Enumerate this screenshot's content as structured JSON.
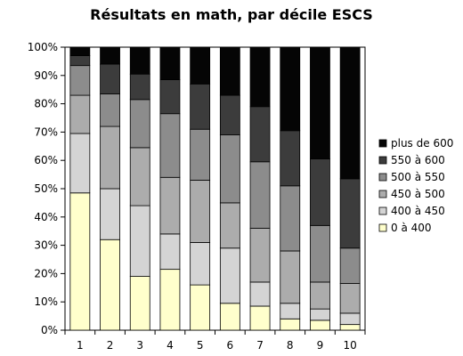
{
  "chart_data": {
    "type": "bar",
    "stacked": true,
    "title": "Résultats en math, par décile ESCS",
    "categories": [
      "1",
      "2",
      "3",
      "4",
      "5",
      "6",
      "7",
      "8",
      "9",
      "10"
    ],
    "yticks": [
      "0%",
      "10%",
      "20%",
      "30%",
      "40%",
      "50%",
      "60%",
      "70%",
      "80%",
      "90%",
      "100%"
    ],
    "ylim": [
      0,
      100
    ],
    "grid": false,
    "legend_position": "right",
    "series": [
      {
        "name": "0 à 400",
        "color": "#ffffcc",
        "values": [
          48.5,
          32,
          19,
          21.5,
          16,
          9.5,
          8.5,
          4,
          3.5,
          2
        ]
      },
      {
        "name": "400 à 450",
        "color": "#d4d4d4",
        "values": [
          21,
          18,
          25,
          12.5,
          15,
          19.5,
          8.5,
          5.5,
          4,
          4
        ]
      },
      {
        "name": "450 à 500",
        "color": "#acacac",
        "values": [
          13.5,
          22,
          20.5,
          20,
          22,
          16,
          19,
          18.5,
          9.5,
          10.5
        ]
      },
      {
        "name": "500 à 550",
        "color": "#8c8c8c",
        "values": [
          10.5,
          11.5,
          17,
          22.5,
          18,
          24,
          23.5,
          23,
          20,
          12.5
        ]
      },
      {
        "name": "550 à 600",
        "color": "#3c3c3c",
        "values": [
          3.5,
          10.5,
          9,
          12,
          16,
          14,
          19.5,
          19.5,
          23.5,
          24.5
        ]
      },
      {
        "name": "plus de 600",
        "color": "#050505",
        "values": [
          3,
          6,
          9.5,
          11.5,
          13,
          17,
          21,
          29.5,
          39.5,
          46.5
        ]
      }
    ]
  }
}
